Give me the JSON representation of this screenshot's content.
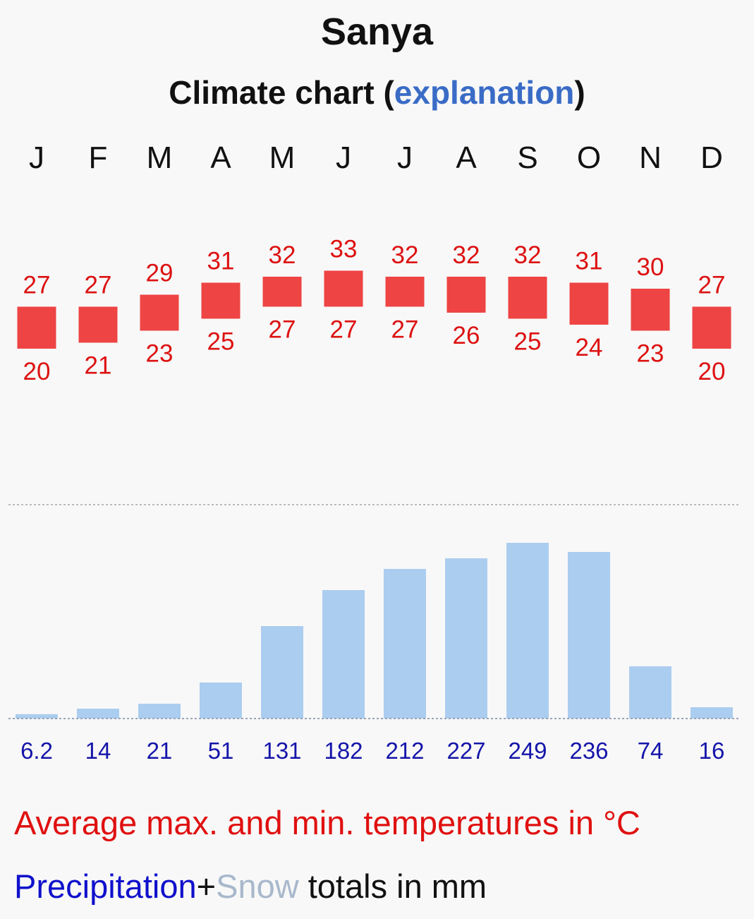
{
  "title": "Sanya",
  "subtitle": {
    "text": "Climate chart",
    "open_paren": "(",
    "link": "explanation",
    "close_paren": ")"
  },
  "legend": {
    "temperature": "Average max. and min. temperatures in °C",
    "precipitation": "Precipitation",
    "plus": "+",
    "snow": "Snow",
    "totals": " totals in mm"
  },
  "colors": {
    "temp_bar": "#ee4444",
    "temp_text": "#dd1111",
    "precip_bar": "#abcdef",
    "precip_text": "#1515aa",
    "link": "#3a6cc6"
  },
  "chart_data": {
    "type": "bar",
    "title": "Sanya",
    "categories": [
      "J",
      "F",
      "M",
      "A",
      "M",
      "J",
      "J",
      "A",
      "S",
      "O",
      "N",
      "D"
    ],
    "series": [
      {
        "name": "Average max. temperature (°C)",
        "values": [
          27,
          27,
          29,
          31,
          32,
          33,
          32,
          32,
          32,
          31,
          30,
          27
        ]
      },
      {
        "name": "Average min. temperature (°C)",
        "values": [
          20,
          21,
          23,
          25,
          27,
          27,
          27,
          26,
          25,
          24,
          23,
          20
        ]
      },
      {
        "name": "Precipitation (mm)",
        "values": [
          6.2,
          14,
          21,
          51,
          131,
          182,
          212,
          227,
          249,
          236,
          74,
          16
        ],
        "labels": [
          "6.2",
          "14",
          "21",
          "51",
          "131",
          "182",
          "212",
          "227",
          "249",
          "236",
          "74",
          "16"
        ]
      }
    ],
    "precip_ylim": [
      0,
      250
    ]
  }
}
